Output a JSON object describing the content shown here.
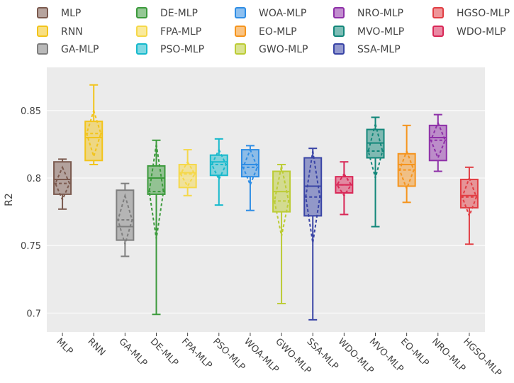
{
  "chart_data": {
    "type": "box",
    "ylabel": "R2",
    "ylim": [
      0.686,
      0.882
    ],
    "yticks": [
      0.7,
      0.75,
      0.8,
      0.85
    ],
    "ytick_labels": [
      "0.7",
      "0.75",
      "0.8",
      "0.85"
    ],
    "grid": true,
    "legend_position": "top",
    "legend_order": [
      "MLP",
      "RNN",
      "GA-MLP",
      "DE-MLP",
      "FPA-MLP",
      "PSO-MLP",
      "WOA-MLP",
      "EO-MLP",
      "GWO-MLP",
      "NRO-MLP",
      "MVO-MLP",
      "SSA-MLP",
      "HGSO-MLP",
      "WDO-MLP"
    ],
    "categories": [
      "MLP",
      "RNN",
      "GA-MLP",
      "DE-MLP",
      "FPA-MLP",
      "PSO-MLP",
      "WOA-MLP",
      "GWO-MLP",
      "SSA-MLP",
      "WDO-MLP",
      "MVO-MLP",
      "EO-MLP",
      "NRO-MLP",
      "HGSO-MLP"
    ],
    "series": [
      {
        "name": "MLP",
        "color": "#7b5a4f",
        "min": 0.777,
        "q1": 0.788,
        "median": 0.799,
        "q3": 0.812,
        "max": 0.814,
        "mean": 0.796,
        "sd": 0.012
      },
      {
        "name": "RNN",
        "color": "#f2c41b",
        "min": 0.81,
        "q1": 0.813,
        "median": 0.83,
        "q3": 0.842,
        "max": 0.869,
        "mean": 0.833,
        "sd": 0.017
      },
      {
        "name": "GA-MLP",
        "color": "#7f7f7f",
        "min": 0.742,
        "q1": 0.754,
        "median": 0.764,
        "q3": 0.791,
        "max": 0.796,
        "mean": 0.769,
        "sd": 0.018
      },
      {
        "name": "DE-MLP",
        "color": "#3c9a3c",
        "min": 0.699,
        "q1": 0.788,
        "median": 0.8,
        "q3": 0.809,
        "max": 0.828,
        "mean": 0.79,
        "sd": 0.035
      },
      {
        "name": "FPA-MLP",
        "color": "#f5d84a",
        "min": 0.787,
        "q1": 0.793,
        "median": 0.804,
        "q3": 0.81,
        "max": 0.821,
        "mean": 0.803,
        "sd": 0.009
      },
      {
        "name": "PSO-MLP",
        "color": "#17b9cc",
        "min": 0.78,
        "q1": 0.802,
        "median": 0.812,
        "q3": 0.817,
        "max": 0.829,
        "mean": 0.81,
        "sd": 0.011
      },
      {
        "name": "WOA-MLP",
        "color": "#2f8de4",
        "min": 0.776,
        "q1": 0.801,
        "median": 0.81,
        "q3": 0.821,
        "max": 0.824,
        "mean": 0.808,
        "sd": 0.013
      },
      {
        "name": "GWO-MLP",
        "color": "#bccc36",
        "min": 0.707,
        "q1": 0.775,
        "median": 0.79,
        "q3": 0.805,
        "max": 0.81,
        "mean": 0.783,
        "sd": 0.026
      },
      {
        "name": "SSA-MLP",
        "color": "#3a45a6",
        "min": 0.695,
        "q1": 0.772,
        "median": 0.794,
        "q3": 0.815,
        "max": 0.822,
        "mean": 0.786,
        "sd": 0.034
      },
      {
        "name": "WDO-MLP",
        "color": "#d92857",
        "min": 0.773,
        "q1": 0.789,
        "median": 0.795,
        "q3": 0.801,
        "max": 0.812,
        "mean": 0.795,
        "sd": 0.008
      },
      {
        "name": "MVO-MLP",
        "color": "#13877a",
        "min": 0.764,
        "q1": 0.815,
        "median": 0.826,
        "q3": 0.836,
        "max": 0.845,
        "mean": 0.82,
        "sd": 0.02
      },
      {
        "name": "EO-MLP",
        "color": "#f5941d",
        "min": 0.782,
        "q1": 0.794,
        "median": 0.81,
        "q3": 0.818,
        "max": 0.839,
        "mean": 0.806,
        "sd": 0.014
      },
      {
        "name": "NRO-MLP",
        "color": "#8e30a8",
        "min": 0.805,
        "q1": 0.813,
        "median": 0.83,
        "q3": 0.839,
        "max": 0.847,
        "mean": 0.828,
        "sd": 0.013
      },
      {
        "name": "HGSO-MLP",
        "color": "#e13e44",
        "min": 0.751,
        "q1": 0.778,
        "median": 0.787,
        "q3": 0.799,
        "max": 0.808,
        "mean": 0.786,
        "sd": 0.014
      }
    ]
  }
}
